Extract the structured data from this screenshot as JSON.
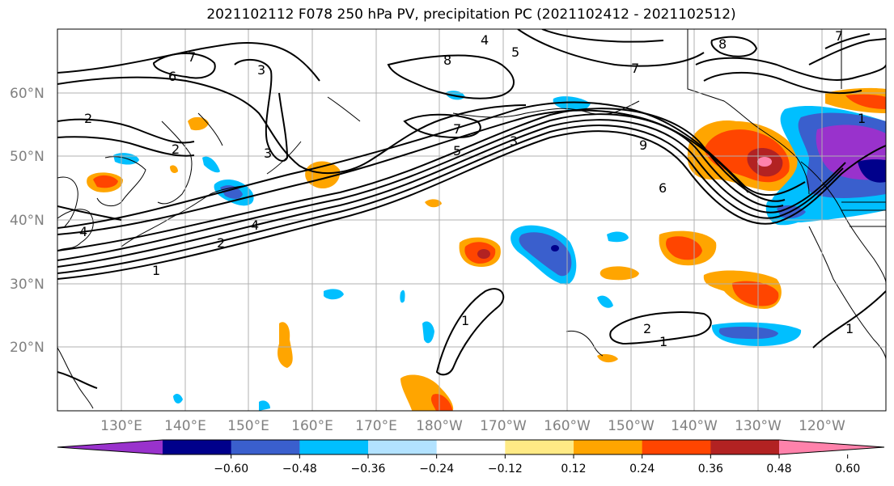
{
  "title": "2021102112 F078 250 hPa PV, precipitation PC (2021102412 - 2021102512)",
  "lat_labels": [
    "60°N",
    "50°N",
    "40°N",
    "30°N",
    "20°N"
  ],
  "lon_labels": [
    "130°E",
    "140°E",
    "150°E",
    "160°E",
    "170°E",
    "180°W",
    "170°W",
    "160°W",
    "150°W",
    "140°W",
    "130°W",
    "120°W"
  ],
  "contour_labels": [
    "6",
    "7",
    "8",
    "4",
    "5",
    "5",
    "3",
    "7",
    "7",
    "4",
    "3",
    "2",
    "2",
    "3",
    "4",
    "2",
    "1",
    "2",
    "1",
    "1",
    "7",
    "8",
    "9",
    "6",
    "1",
    "1"
  ],
  "colorbar": {
    "ticks": [
      "−0.60",
      "−0.48",
      "−0.36",
      "−0.24",
      "−0.12",
      "0.12",
      "0.24",
      "0.36",
      "0.48",
      "0.60"
    ],
    "colors": [
      "#9932CC",
      "#00008B",
      "#3A5FCD",
      "#00BFFF",
      "#B2E2FF",
      "#FFFFFF",
      "#FFEA85",
      "#FFA500",
      "#FF4500",
      "#B22222",
      "#FF82AB"
    ]
  },
  "colors": {
    "grid": "#b0b0b0",
    "contour": "#000000",
    "coast": "#000000"
  }
}
